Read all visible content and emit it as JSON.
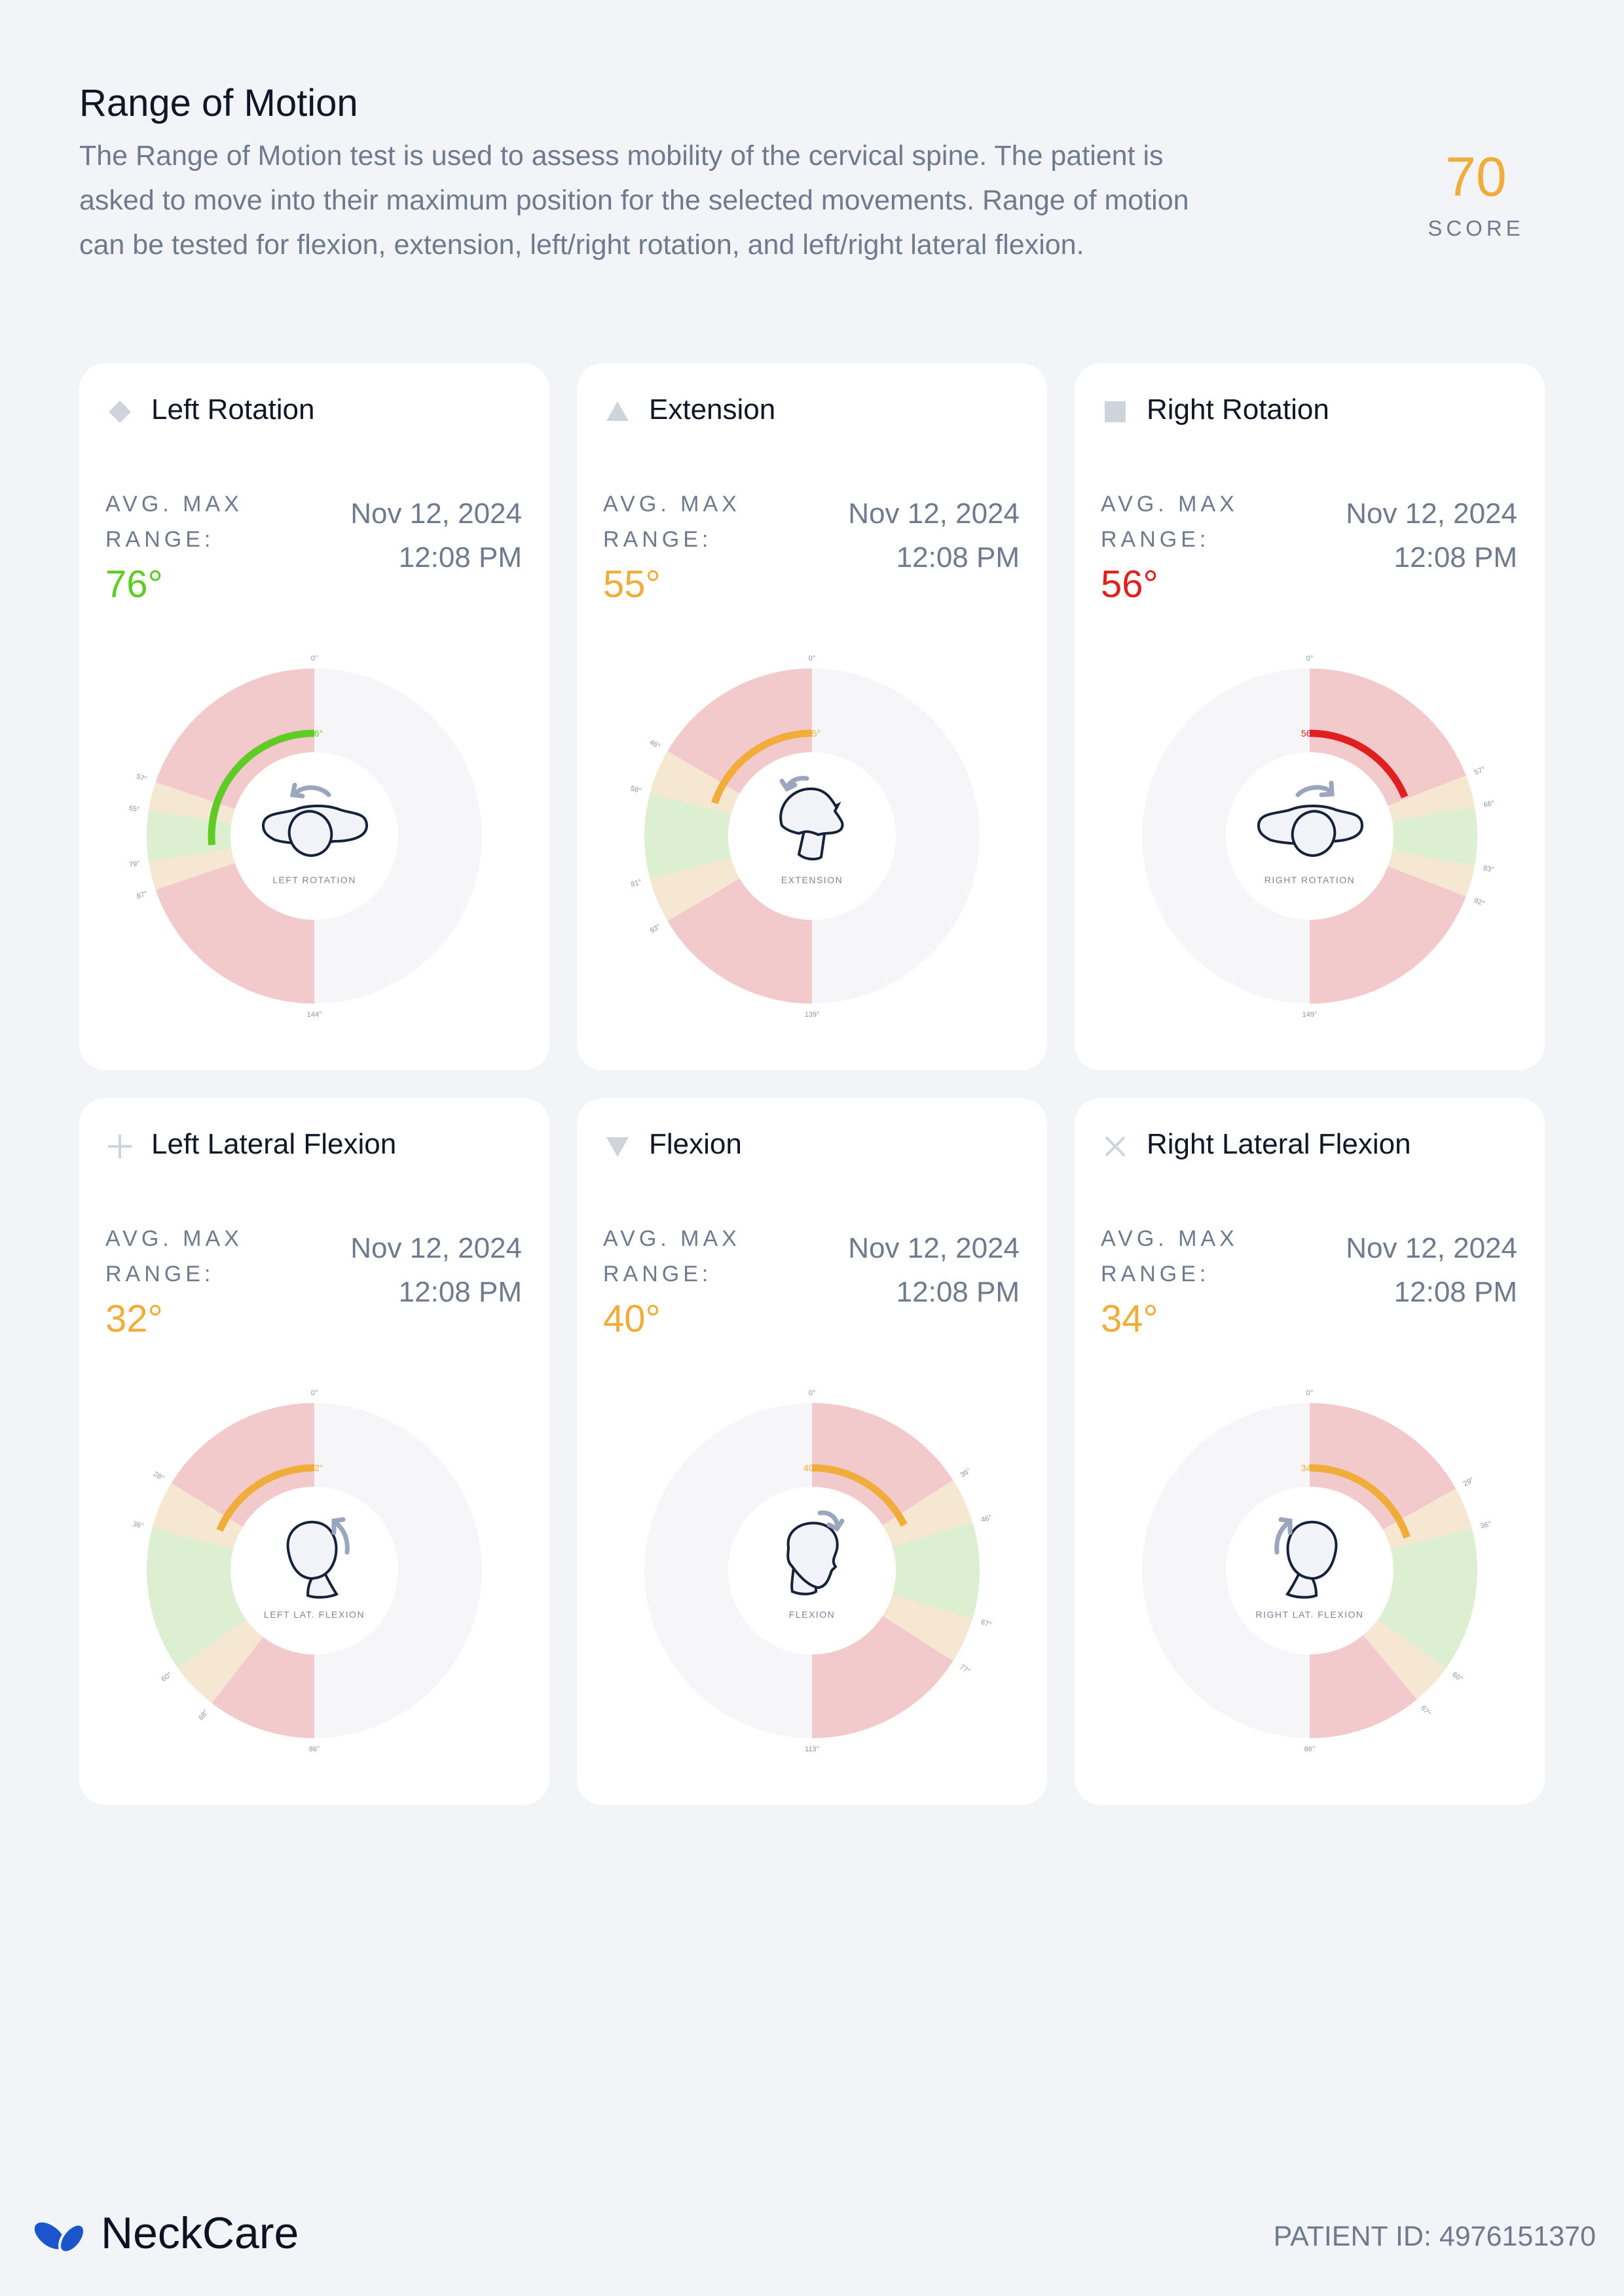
{
  "header": {
    "title": "Range of Motion",
    "description": "The Range of Motion test is used to assess mobility of the cervical spine. The patient is asked to move into their maximum position for the selected movements. Range of motion can be tested for flexion, extension, left/right rotation, and left/right lateral flexion.",
    "score_value": "70",
    "score_label": "SCORE"
  },
  "colors": {
    "zone_red": "#f2cacb",
    "zone_beige": "#f6e7d3",
    "zone_green": "#dcefd0",
    "inactive": "#f6f6f8",
    "good": "#5fcc26",
    "warn": "#f0ad3a",
    "bad": "#e0201e"
  },
  "cards": [
    {
      "title": "Left Rotation",
      "marker_icon": "diamond-icon",
      "avg_label_1": "AVG. MAX",
      "avg_label_2": "RANGE:",
      "value_text": "76°",
      "date": "Nov 12, 2024",
      "time": "12:08 PM",
      "status_color": "#5fcc26",
      "gauge": {
        "value": 76,
        "value_label": "76°",
        "max": 144,
        "zones": [
          57,
          65,
          79,
          87
        ],
        "zone_labels": [
          "57°",
          "65°",
          "79°",
          "87°"
        ],
        "min_label": "0°",
        "max_label": "144°",
        "side": "left",
        "figure": "rotation-left",
        "figure_label": "LEFT ROTATION"
      }
    },
    {
      "title": "Extension",
      "marker_icon": "triangle-up-icon",
      "avg_label_1": "AVG. MAX",
      "avg_label_2": "RANGE:",
      "value_text": "55°",
      "date": "Nov 12, 2024",
      "time": "12:08 PM",
      "status_color": "#f0ad3a",
      "gauge": {
        "value": 55,
        "value_label": "55°",
        "max": 139,
        "zones": [
          46,
          58,
          81,
          93
        ],
        "zone_labels": [
          "46°",
          "58°",
          "81°",
          "93°"
        ],
        "min_label": "0°",
        "max_label": "139°",
        "side": "left",
        "figure": "extension",
        "figure_label": "EXTENSION"
      }
    },
    {
      "title": "Right Rotation",
      "marker_icon": "square-icon",
      "avg_label_1": "AVG. MAX",
      "avg_label_2": "RANGE:",
      "value_text": "56°",
      "date": "Nov 12, 2024",
      "time": "12:08 PM",
      "status_color": "#e0201e",
      "gauge": {
        "value": 56,
        "value_label": "56°",
        "max": 149,
        "zones": [
          57,
          66,
          83,
          92
        ],
        "zone_labels": [
          "57°",
          "66°",
          "83°",
          "92°"
        ],
        "min_label": "0°",
        "max_label": "149°",
        "side": "right",
        "figure": "rotation-right",
        "figure_label": "RIGHT ROTATION"
      }
    },
    {
      "title": "Left Lateral Flexion",
      "marker_icon": "plus-icon",
      "avg_label_1": "AVG. MAX",
      "avg_label_2": "RANGE:",
      "value_text": "32°",
      "date": "Nov 12, 2024",
      "time": "12:08 PM",
      "status_color": "#f0ad3a",
      "gauge": {
        "value": 32,
        "value_label": "32°",
        "max": 86,
        "zones": [
          28,
          36,
          60,
          68
        ],
        "zone_labels": [
          "28°",
          "36°",
          "60°",
          "68°"
        ],
        "min_label": "0°",
        "max_label": "86°",
        "side": "left",
        "figure": "lat-left",
        "figure_label": "LEFT LAT. FLEXION"
      }
    },
    {
      "title": "Flexion",
      "marker_icon": "triangle-down-icon",
      "avg_label_1": "AVG. MAX",
      "avg_label_2": "RANGE:",
      "value_text": "40°",
      "date": "Nov 12, 2024",
      "time": "12:08 PM",
      "status_color": "#f0ad3a",
      "gauge": {
        "value": 40,
        "value_label": "40°",
        "max": 113,
        "zones": [
          36,
          46,
          67,
          77
        ],
        "zone_labels": [
          "36°",
          "46°",
          "67°",
          "77°"
        ],
        "min_label": "0°",
        "max_label": "113°",
        "side": "right",
        "figure": "flexion",
        "figure_label": "FLEXION"
      }
    },
    {
      "title": "Right Lateral Flexion",
      "marker_icon": "x-icon",
      "avg_label_1": "AVG. MAX",
      "avg_label_2": "RANGE:",
      "value_text": "34°",
      "date": "Nov 12, 2024",
      "time": "12:08 PM",
      "status_color": "#f0ad3a",
      "gauge": {
        "value": 34,
        "value_label": "34°",
        "max": 86,
        "zones": [
          29,
          36,
          60,
          67
        ],
        "zone_labels": [
          "29°",
          "36°",
          "60°",
          "67°"
        ],
        "min_label": "0°",
        "max_label": "86°",
        "side": "right",
        "figure": "lat-right",
        "figure_label": "RIGHT LAT. FLEXION"
      }
    }
  ],
  "footer": {
    "brand": "NeckCare",
    "brand_color": "#1a55cc",
    "patient_id": "PATIENT ID: 4976151370"
  }
}
